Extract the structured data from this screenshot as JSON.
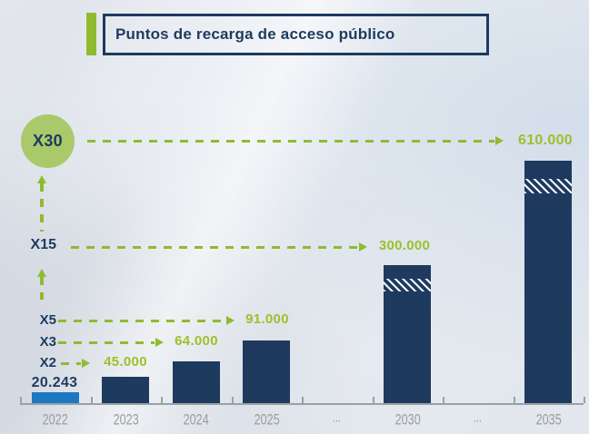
{
  "header": {
    "title": "Puntos de recarga de acceso público"
  },
  "chart_data": {
    "type": "bar",
    "title": "Puntos de recarga de acceso público",
    "categories": [
      "2022",
      "2023",
      "2024",
      "2025",
      "...",
      "2030",
      "...",
      "2035"
    ],
    "values": [
      20243,
      45000,
      64000,
      91000,
      null,
      300000,
      null,
      610000
    ],
    "value_labels": [
      "20.243",
      "45.000",
      "64.000",
      "91.000",
      "",
      "300.000",
      "",
      "610.000"
    ],
    "xlabel": "",
    "ylabel": "",
    "ylim": [
      0,
      650000
    ],
    "grid": false,
    "legend": false,
    "hatched_band_years": [
      "2030",
      "2035"
    ],
    "baseline": {
      "year": "2022",
      "value": 20243,
      "value_label": "20.243"
    },
    "multipliers": [
      {
        "label": "X30",
        "target_year": "2035",
        "target_value_label": "610.000"
      },
      {
        "label": "X15",
        "target_year": "2030",
        "target_value_label": "300.000"
      },
      {
        "label": "X5",
        "target_year": "2025",
        "target_value_label": "91.000"
      },
      {
        "label": "X3",
        "target_year": "2024",
        "target_value_label": "64.000"
      },
      {
        "label": "X2",
        "target_year": "2023",
        "target_value_label": "45.000"
      }
    ]
  },
  "colors": {
    "navy": "#1e3a5f",
    "bar_default": "#1e3a5f",
    "bar_2022": "#1b79c2",
    "green_arrow": "#8fbb30",
    "green_label": "#9cc02c",
    "green_circle": "#a9c96b",
    "year_gray": "#9b9b9b",
    "axis_gray": "#9aa0a8"
  }
}
